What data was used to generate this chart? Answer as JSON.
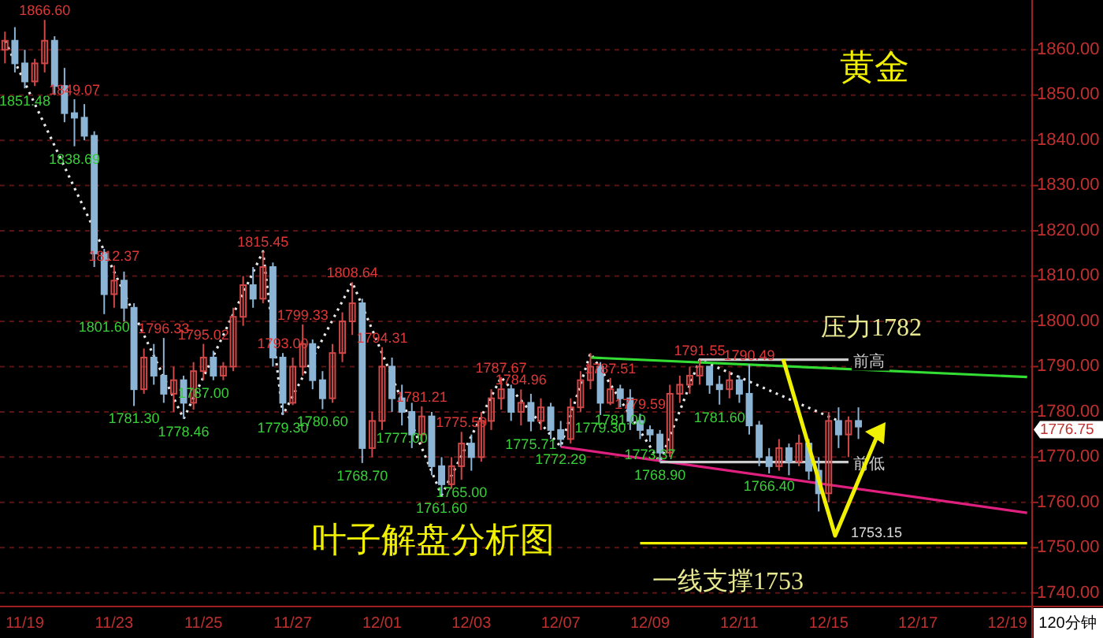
{
  "chart_data": {
    "type": "candlestick",
    "title": "黄金",
    "subtitle": "叶子解盘分析图",
    "xlabel": "120分钟",
    "categories": [
      null,
      null,
      "11/19",
      null,
      null,
      null,
      null,
      null,
      null,
      null,
      null,
      "11/23",
      null,
      null,
      null,
      null,
      null,
      null,
      null,
      null,
      "11/25",
      null,
      null,
      null,
      null,
      null,
      null,
      null,
      null,
      "11/27",
      null,
      null,
      null,
      null,
      null,
      null,
      null,
      null,
      "12/01",
      null,
      null,
      null,
      null,
      null,
      null,
      null,
      null,
      "12/03",
      null,
      null,
      null,
      null,
      null,
      null,
      null,
      null,
      "12/07",
      null,
      null,
      null,
      null,
      null,
      null,
      null,
      null,
      "12/09",
      null,
      null,
      null,
      null,
      null,
      null,
      null,
      null,
      "12/11",
      null,
      null,
      null,
      null,
      null,
      null,
      null,
      null,
      "12/15",
      null,
      null,
      null,
      null,
      null,
      null,
      null,
      null,
      "12/17",
      null,
      null,
      null,
      null,
      null,
      null,
      null,
      null,
      "12/19",
      null,
      null
    ],
    "ylim": [
      1737,
      1871
    ],
    "yticks": [
      {
        "value": 1740,
        "label": "1740.00"
      },
      {
        "value": 1750,
        "label": "1750.00"
      },
      {
        "value": 1760,
        "label": "1760.00"
      },
      {
        "value": 1770,
        "label": "1770.00"
      },
      {
        "value": 1780,
        "label": "1780.00"
      },
      {
        "value": 1790,
        "label": "1790.00"
      },
      {
        "value": 1800,
        "label": "1800.00"
      },
      {
        "value": 1810,
        "label": "1810.00"
      },
      {
        "value": 1820,
        "label": "1820.00"
      },
      {
        "value": 1830,
        "label": "1830.00"
      },
      {
        "value": 1840,
        "label": "1840.00"
      },
      {
        "value": 1850,
        "label": "1850.00"
      },
      {
        "value": 1860,
        "label": "1860.00"
      }
    ],
    "grid": "y",
    "series": [
      {
        "ohlc": [
          [
            1860,
            1864,
            1857,
            1862
          ],
          [
            1862,
            1865,
            1855,
            1857
          ],
          [
            1857,
            1860,
            1851.48,
            1853
          ],
          [
            1853,
            1858,
            1852,
            1857
          ],
          [
            1857,
            1866.6,
            1855,
            1862
          ],
          [
            1862,
            1863,
            1850,
            1852
          ],
          [
            1852,
            1856,
            1844,
            1846
          ],
          [
            1846,
            1849.07,
            1838.69,
            1845
          ],
          [
            1845,
            1848,
            1840,
            1841
          ],
          [
            1841,
            1842,
            1812,
            1815
          ],
          [
            1815,
            1816,
            1801.6,
            1806
          ],
          [
            1806,
            1812.37,
            1803,
            1809
          ],
          [
            1809,
            1811,
            1800,
            1803
          ],
          [
            1803,
            1804,
            1781.3,
            1785
          ],
          [
            1785,
            1794,
            1784,
            1792
          ],
          [
            1792,
            1795,
            1786,
            1788
          ],
          [
            1788,
            1796.33,
            1782,
            1784
          ],
          [
            1784,
            1790,
            1780,
            1787
          ],
          [
            1787,
            1788,
            1778.46,
            1782
          ],
          [
            1782,
            1791,
            1780.5,
            1789
          ],
          [
            1789,
            1795.02,
            1787,
            1792
          ],
          [
            1792,
            1793.5,
            1787,
            1788
          ],
          [
            1788,
            1791,
            1787,
            1790
          ],
          [
            1790,
            1803,
            1789,
            1801
          ],
          [
            1801,
            1810,
            1799,
            1808
          ],
          [
            1808,
            1812,
            1803,
            1805
          ],
          [
            1805,
            1815.45,
            1804,
            1812
          ],
          [
            1812,
            1813,
            1790,
            1792
          ],
          [
            1792,
            1793,
            1779.3,
            1782
          ],
          [
            1782,
            1792,
            1781.5,
            1790
          ],
          [
            1790,
            1799.33,
            1788,
            1795
          ],
          [
            1795,
            1796,
            1785,
            1787
          ],
          [
            1787,
            1789,
            1780.6,
            1783
          ],
          [
            1783,
            1795,
            1782,
            1793
          ],
          [
            1793,
            1802,
            1791,
            1800
          ],
          [
            1800,
            1808.64,
            1797,
            1804
          ],
          [
            1804,
            1805,
            1768.7,
            1772
          ],
          [
            1772,
            1780,
            1770,
            1778
          ],
          [
            1778,
            1794.31,
            1776,
            1790
          ],
          [
            1790,
            1792,
            1780,
            1783
          ],
          [
            1783,
            1786,
            1777,
            1780
          ],
          [
            1780,
            1782,
            1772,
            1775
          ],
          [
            1775,
            1781.21,
            1773,
            1779
          ],
          [
            1779,
            1780,
            1766,
            1768
          ],
          [
            1768,
            1770,
            1761.6,
            1764
          ],
          [
            1764,
            1770,
            1763,
            1768
          ],
          [
            1768,
            1775.59,
            1765,
            1773
          ],
          [
            1773,
            1775,
            1767,
            1770
          ],
          [
            1770,
            1780,
            1769,
            1778
          ],
          [
            1778,
            1785,
            1776,
            1783
          ],
          [
            1783,
            1787.67,
            1780.5,
            1785
          ],
          [
            1785,
            1786,
            1778,
            1780
          ],
          [
            1780,
            1784.96,
            1777,
            1782
          ],
          [
            1782,
            1784,
            1775.71,
            1778
          ],
          [
            1778,
            1783,
            1776,
            1781
          ],
          [
            1781,
            1782,
            1774,
            1776
          ],
          [
            1776,
            1778,
            1772.29,
            1774
          ],
          [
            1774,
            1783,
            1773,
            1781
          ],
          [
            1781,
            1789,
            1780,
            1787
          ],
          [
            1787,
            1793,
            1785,
            1790
          ],
          [
            1790,
            1791,
            1779.3,
            1782
          ],
          [
            1782,
            1787.51,
            1781.5,
            1785
          ],
          [
            1785,
            1786,
            1781,
            1783
          ],
          [
            1783,
            1785,
            1776,
            1778
          ],
          [
            1778,
            1779.59,
            1774,
            1776
          ],
          [
            1776,
            1777,
            1773.37,
            1775
          ],
          [
            1775,
            1776,
            1768.9,
            1771
          ],
          [
            1771,
            1786,
            1770,
            1784
          ],
          [
            1784,
            1788,
            1782,
            1786
          ],
          [
            1786,
            1790,
            1784,
            1788
          ],
          [
            1788,
            1791.55,
            1786,
            1790
          ],
          [
            1790,
            1790,
            1784,
            1786
          ],
          [
            1786,
            1788,
            1781.6,
            1785
          ],
          [
            1785,
            1789,
            1783,
            1787
          ],
          [
            1787,
            1788,
            1782,
            1784
          ],
          [
            1784,
            1790.49,
            1775,
            1777
          ],
          [
            1777,
            1778,
            1768,
            1770
          ],
          [
            1770,
            1772,
            1766.4,
            1768
          ],
          [
            1768,
            1774,
            1767,
            1772
          ],
          [
            1772,
            1773,
            1766,
            1769
          ],
          [
            1769,
            1775,
            1768,
            1773
          ],
          [
            1773,
            1774,
            1765,
            1767
          ],
          [
            1767,
            1770,
            1758,
            1762
          ],
          [
            1762,
            1780,
            1760,
            1778
          ],
          [
            1778,
            1781,
            1772,
            1775
          ],
          [
            1775,
            1779,
            1770,
            1778
          ],
          [
            1778,
            1781,
            1774,
            1776.75
          ],
          null,
          null,
          null,
          null,
          null,
          null,
          null,
          null,
          null,
          null,
          null,
          null,
          null,
          null,
          null,
          null,
          null
        ],
        "colors": [
          "#d04848",
          "#8cb4d4",
          "#8cb4d4",
          "#d04848",
          "#d04848",
          "#8cb4d4",
          "#8cb4d4",
          "#8cb4d4",
          "#8cb4d4",
          "#8cb4d4",
          "#8cb4d4",
          "#d04848",
          "#8cb4d4",
          "#8cb4d4",
          "#d04848",
          "#8cb4d4",
          "#8cb4d4",
          "#d04848",
          "#8cb4d4",
          "#d04848",
          "#d04848",
          "#8cb4d4",
          "#d04848",
          "#d04848",
          "#d04848",
          "#8cb4d4",
          "#d04848",
          "#8cb4d4",
          "#8cb4d4",
          "#d04848",
          "#d04848",
          "#8cb4d4",
          "#8cb4d4",
          "#d04848",
          "#d04848",
          "#d04848",
          "#8cb4d4",
          "#d04848",
          "#d04848",
          "#8cb4d4",
          "#8cb4d4",
          "#8cb4d4",
          "#d04848",
          "#8cb4d4",
          "#8cb4d4",
          "#d04848",
          "#d04848",
          "#8cb4d4",
          "#d04848",
          "#d04848",
          "#d04848",
          "#8cb4d4",
          "#d04848",
          "#8cb4d4",
          "#d04848",
          "#8cb4d4",
          "#8cb4d4",
          "#d04848",
          "#d04848",
          "#d04848",
          "#8cb4d4",
          "#d04848",
          "#8cb4d4",
          "#8cb4d4",
          "#8cb4d4",
          "#8cb4d4",
          "#8cb4d4",
          "#d04848",
          "#d04848",
          "#d04848",
          "#d04848",
          "#8cb4d4",
          "#8cb4d4",
          "#d04848",
          "#8cb4d4",
          "#8cb4d4",
          "#8cb4d4",
          "#8cb4d4",
          "#d04848",
          "#8cb4d4",
          "#d04848",
          "#8cb4d4",
          "#8cb4d4",
          "#d04848",
          "#8cb4d4",
          "#d04848",
          "#8cb4d4",
          null,
          null,
          null,
          null,
          null,
          null,
          null,
          null,
          null,
          null,
          null,
          null,
          null,
          null,
          null,
          null,
          null
        ]
      },
      {
        "type": "line",
        "line_style": "dotted",
        "color": "#e8e8e8",
        "values": [
          1862,
          null,
          null,
          null,
          null,
          null,
          null,
          null,
          null,
          null,
          null,
          null,
          null,
          null,
          null,
          null,
          null,
          null,
          1778.46,
          null,
          null,
          null,
          null,
          null,
          null,
          null,
          1815.45,
          null,
          1779.3,
          null,
          null,
          null,
          null,
          null,
          null,
          1808.64,
          null,
          null,
          null,
          null,
          null,
          null,
          null,
          null,
          1761.6,
          null,
          null,
          null,
          null,
          null,
          1787.67,
          null,
          null,
          null,
          null,
          null,
          1772.29,
          null,
          null,
          1793,
          null,
          null,
          null,
          null,
          null,
          null,
          1768.9,
          null,
          null,
          null,
          1791.55,
          null,
          null,
          null,
          null,
          null,
          null,
          null,
          null,
          null,
          null,
          null,
          null,
          null,
          1778,
          null,
          null,
          null,
          null,
          null,
          null,
          null,
          null,
          null,
          null,
          null,
          null,
          null,
          null,
          null,
          null,
          null,
          null,
          null
        ]
      },
      {
        "type": "line",
        "color": "#33dd33",
        "values": [
          null,
          null,
          null,
          null,
          null,
          null,
          null,
          null,
          null,
          null,
          null,
          null,
          null,
          null,
          null,
          null,
          null,
          null,
          null,
          null,
          null,
          null,
          null,
          null,
          null,
          null,
          null,
          null,
          null,
          null,
          null,
          null,
          null,
          null,
          null,
          null,
          null,
          null,
          null,
          null,
          null,
          null,
          null,
          null,
          null,
          null,
          null,
          null,
          null,
          null,
          null,
          null,
          null,
          null,
          null,
          null,
          null,
          null,
          null,
          1792,
          null,
          null,
          null,
          null,
          null,
          null,
          null,
          null,
          null,
          null,
          null,
          null,
          null,
          null,
          null,
          null,
          null,
          null,
          null,
          null,
          null,
          null,
          null,
          null,
          null,
          null,
          null,
          null,
          null,
          null,
          null,
          null,
          null,
          null,
          null,
          null,
          null,
          null,
          null,
          null,
          null,
          null,
          null,
          1787.7
        ]
      },
      {
        "type": "line",
        "color": "#e0207f",
        "values": [
          null,
          null,
          null,
          null,
          null,
          null,
          null,
          null,
          null,
          null,
          null,
          null,
          null,
          null,
          null,
          null,
          null,
          null,
          null,
          null,
          null,
          null,
          null,
          null,
          null,
          null,
          null,
          null,
          null,
          null,
          null,
          null,
          null,
          null,
          null,
          null,
          null,
          null,
          null,
          null,
          null,
          null,
          null,
          null,
          null,
          null,
          null,
          null,
          null,
          null,
          null,
          null,
          null,
          null,
          null,
          null,
          1772.29,
          null,
          null,
          null,
          null,
          null,
          null,
          null,
          null,
          null,
          null,
          null,
          null,
          null,
          null,
          null,
          null,
          null,
          null,
          null,
          null,
          null,
          null,
          null,
          null,
          null,
          null,
          null,
          null,
          null,
          null,
          null,
          null,
          null,
          null,
          null,
          null,
          null,
          null,
          null,
          null,
          null,
          null,
          null,
          null,
          null,
          null,
          1757.7
        ]
      },
      {
        "type": "line",
        "color": "#f0f000",
        "values": [
          null,
          null,
          null,
          null,
          null,
          null,
          null,
          null,
          null,
          null,
          null,
          null,
          null,
          null,
          null,
          null,
          null,
          null,
          null,
          null,
          null,
          null,
          null,
          null,
          null,
          null,
          null,
          null,
          null,
          null,
          null,
          null,
          null,
          null,
          null,
          null,
          null,
          null,
          null,
          null,
          null,
          null,
          null,
          null,
          null,
          null,
          null,
          null,
          null,
          null,
          null,
          null,
          null,
          null,
          null,
          null,
          null,
          null,
          null,
          null,
          null,
          null,
          null,
          null,
          1751,
          null,
          null,
          null,
          null,
          null,
          null,
          null,
          null,
          null,
          null,
          null,
          null,
          null,
          null,
          null,
          null,
          null,
          null,
          null,
          null,
          null,
          null,
          null,
          null,
          null,
          null,
          null,
          null,
          null,
          null,
          null,
          null,
          null,
          null,
          null,
          null,
          null,
          null,
          1751
        ]
      },
      {
        "type": "line",
        "name": "前高",
        "color": "#cccccc",
        "values": [
          null,
          null,
          null,
          null,
          null,
          null,
          null,
          null,
          null,
          null,
          null,
          null,
          null,
          null,
          null,
          null,
          null,
          null,
          null,
          null,
          null,
          null,
          null,
          null,
          null,
          null,
          null,
          null,
          null,
          null,
          null,
          null,
          null,
          null,
          null,
          null,
          null,
          null,
          null,
          null,
          null,
          null,
          null,
          null,
          null,
          null,
          null,
          null,
          null,
          null,
          null,
          null,
          null,
          null,
          null,
          null,
          null,
          null,
          null,
          null,
          null,
          null,
          null,
          null,
          null,
          null,
          null,
          null,
          null,
          null,
          1791.55,
          null,
          null,
          null,
          null,
          null,
          null,
          null,
          null,
          null,
          null,
          null,
          null,
          null,
          null,
          1791.55,
          null,
          null,
          null,
          null,
          null,
          null,
          null,
          null,
          null,
          null,
          null,
          null,
          null,
          null,
          null,
          null,
          null,
          null
        ]
      },
      {
        "type": "line",
        "name": "前低",
        "color": "#cccccc",
        "values": [
          null,
          null,
          null,
          null,
          null,
          null,
          null,
          null,
          null,
          null,
          null,
          null,
          null,
          null,
          null,
          null,
          null,
          null,
          null,
          null,
          null,
          null,
          null,
          null,
          null,
          null,
          null,
          null,
          null,
          null,
          null,
          null,
          null,
          null,
          null,
          null,
          null,
          null,
          null,
          null,
          null,
          null,
          null,
          null,
          null,
          null,
          null,
          null,
          null,
          null,
          null,
          null,
          null,
          null,
          null,
          null,
          null,
          null,
          null,
          null,
          null,
          null,
          null,
          null,
          null,
          null,
          1768.9,
          null,
          null,
          null,
          null,
          null,
          null,
          null,
          null,
          null,
          null,
          null,
          null,
          null,
          null,
          null,
          null,
          null,
          null,
          1768.9,
          null,
          null,
          null,
          null,
          null,
          null,
          null,
          null,
          null,
          null,
          null,
          null,
          null,
          null,
          null,
          null,
          null,
          null
        ]
      }
    ],
    "annotations": [
      "压力1782",
      "一线支撑1753",
      "1753.15",
      "1776.75",
      {
        "text": "1866.60",
        "y": 1866.6
      },
      {
        "text": "1851.48",
        "y": 1851.48
      },
      {
        "text": "1849.07",
        "y": 1849.07
      },
      {
        "text": "1838.69",
        "y": 1838.69
      },
      {
        "text": "1812.37",
        "y": 1812.37
      },
      {
        "text": "1801.60",
        "y": 1801.6
      },
      {
        "text": "1796.33",
        "y": 1796.33
      },
      {
        "text": "1781.30",
        "y": 1781.3
      },
      {
        "text": "1778.46",
        "y": 1778.46
      },
      {
        "text": "1795.02",
        "y": 1795.02
      },
      {
        "text": "1787.00",
        "y": 1787
      },
      {
        "text": "1815.45",
        "y": 1815.45
      },
      {
        "text": "1779.30",
        "y": 1779.3
      },
      {
        "text": "1799.33",
        "y": 1799.33
      },
      {
        "text": "1780.60",
        "y": 1780.6
      },
      {
        "text": "1808.64",
        "y": 1808.64
      },
      {
        "text": "1768.70",
        "y": 1768.7
      },
      {
        "text": "1794.31",
        "y": 1794.31
      },
      {
        "text": "1777.00",
        "y": 1777
      },
      {
        "text": "1781.21",
        "y": 1781.21
      },
      {
        "text": "1761.60",
        "y": 1761.6
      },
      {
        "text": "1765.00",
        "y": 1765
      },
      {
        "text": "1775.59",
        "y": 1775.59
      },
      {
        "text": "1787.67",
        "y": 1787.67
      },
      {
        "text": "1784.96",
        "y": 1784.96
      },
      {
        "text": "1775.71",
        "y": 1775.71
      },
      {
        "text": "1772.29",
        "y": 1772.29
      },
      {
        "text": "1793.00",
        "y": 1793
      },
      {
        "text": "1779.30",
        "y": 1779.3
      },
      {
        "text": "1787.51",
        "y": 1787.51
      },
      {
        "text": "1781.00",
        "y": 1781
      },
      {
        "text": "1779.59",
        "y": 1779.59
      },
      {
        "text": "1773.37",
        "y": 1773.37
      },
      {
        "text": "1768.90",
        "y": 1768.9
      },
      {
        "text": "1791.55",
        "y": 1791.55
      },
      {
        "text": "1790.49",
        "y": 1790.49
      },
      {
        "text": "1781.60",
        "y": 1781.6
      },
      {
        "text": "1766.40",
        "y": 1766.4
      }
    ]
  }
}
